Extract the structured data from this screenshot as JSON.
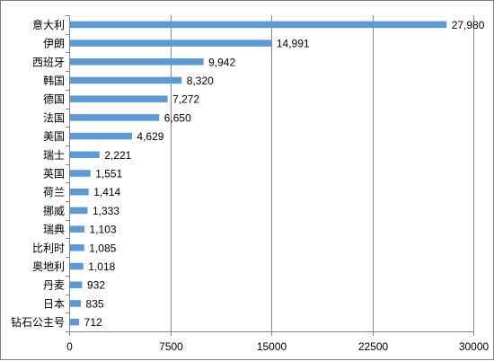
{
  "chart_data": {
    "type": "bar",
    "orientation": "horizontal",
    "categories": [
      "意大利",
      "伊朗",
      "西班牙",
      "韩国",
      "德国",
      "法国",
      "美国",
      "瑞士",
      "英国",
      "荷兰",
      "挪威",
      "瑞典",
      "比利时",
      "奥地利",
      "丹麦",
      "日本",
      "钻石公主号"
    ],
    "values": [
      27980,
      14991,
      9942,
      8320,
      7272,
      6650,
      4629,
      2221,
      1551,
      1414,
      1333,
      1103,
      1085,
      1018,
      932,
      835,
      712
    ],
    "value_labels": [
      "27,980",
      "14,991",
      "9,942",
      "8,320",
      "7,272",
      "6,650",
      "4,629",
      "2,221",
      "1,551",
      "1,414",
      "1,333",
      "1,103",
      "1,085",
      "1,018",
      "932",
      "835",
      "712"
    ],
    "title": "",
    "xlabel": "",
    "ylabel": "",
    "xlim": [
      0,
      30000
    ],
    "x_ticks": [
      "0",
      "7500",
      "15000",
      "22500",
      "30000"
    ],
    "x_tick_values": [
      0,
      7500,
      15000,
      22500,
      30000
    ],
    "grid": "vertical",
    "legend": "none",
    "bar_color": "#5b9bd5",
    "grid_color": "#868686"
  }
}
